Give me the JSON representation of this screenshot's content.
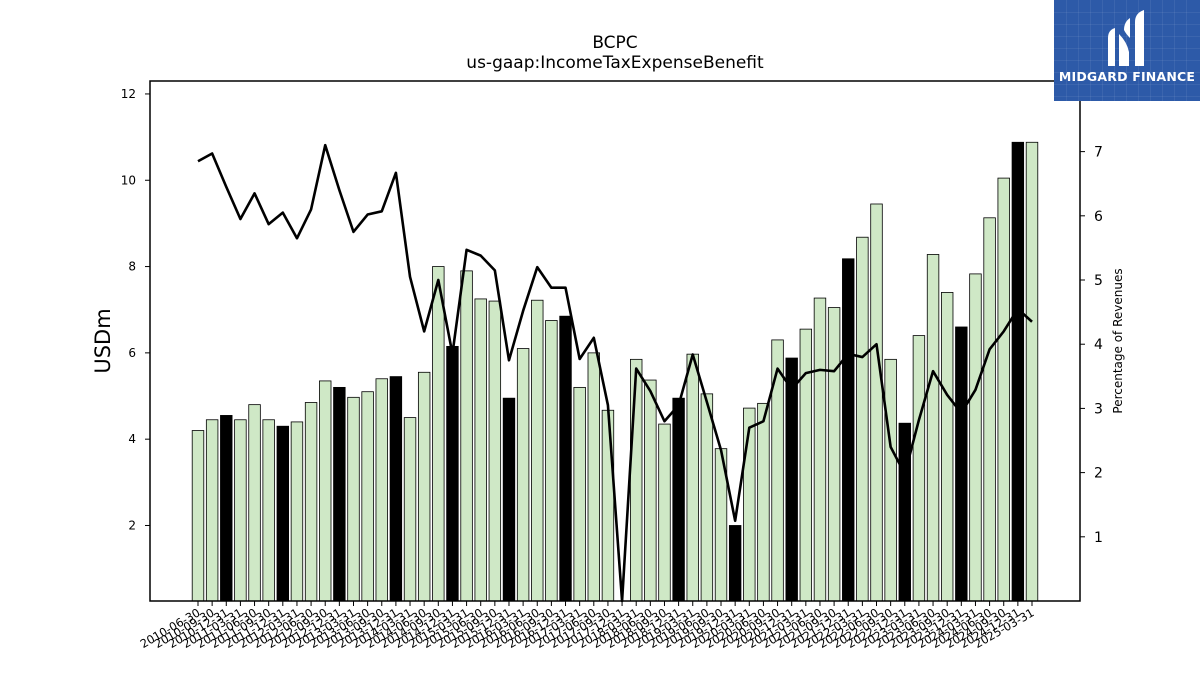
{
  "brand": {
    "name": "MIDGARD FINANCE",
    "logo_icon": "midgard-m-logo-icon",
    "background_color": "#2d5aa8"
  },
  "chart_data": {
    "type": "bar",
    "title": "BCPC",
    "subtitle": "us-gaap:IncomeTaxExpenseBenefit",
    "ylabel": "USDm",
    "y2label": "Percentage of Revenues",
    "ylim": [
      0.25,
      12.3
    ],
    "y2lim": [
      0,
      8.1
    ],
    "yticks": [
      2,
      4,
      6,
      8,
      10,
      12
    ],
    "y2ticks": [
      1,
      2,
      3,
      4,
      5,
      6,
      7
    ],
    "x_tick_labels": [
      "2010-06-30",
      "2010-09-30",
      "2010-12-31",
      "2011-03-31",
      "2011-06-30",
      "2011-09-30",
      "2011-12-31",
      "2012-03-31",
      "2012-06-30",
      "2012-09-30",
      "2012-12-31",
      "2013-03-31",
      "2013-06-30",
      "2013-09-30",
      "2013-12-31",
      "2014-03-31",
      "2014-06-30",
      "2014-09-30",
      "2014-12-31",
      "2015-03-31",
      "2015-06-30",
      "2015-09-30",
      "2015-12-31",
      "2016-03-31",
      "2016-06-30",
      "2016-09-30",
      "2016-12-31",
      "2017-03-31",
      "2017-06-30",
      "2017-09-30",
      "2017-12-31",
      "2018-03-31",
      "2018-06-30",
      "2018-09-30",
      "2018-12-31",
      "2019-03-31",
      "2019-06-30",
      "2019-09-30",
      "2019-12-31",
      "2020-03-31",
      "2020-06-30",
      "2020-09-30",
      "2020-12-31",
      "2021-03-31",
      "2021-06-30",
      "2021-09-30",
      "2021-12-31",
      "2022-03-31",
      "2022-06-30",
      "2022-09-30",
      "2022-12-31",
      "2023-03-31",
      "2023-06-30",
      "2023-09-30",
      "2023-12-31",
      "2024-03-31",
      "2024-06-30",
      "2024-09-30",
      "2024-12-31",
      "2025-03-31"
    ],
    "series": [
      {
        "kind": "bar",
        "values": [
          4.2,
          4.45,
          4.55,
          4.45,
          4.8,
          4.45,
          4.3,
          4.4,
          4.85,
          5.35,
          5.2,
          4.97,
          5.1,
          5.4,
          5.45,
          4.5,
          5.55,
          8.0,
          6.15,
          7.9,
          7.25,
          7.2,
          4.95,
          6.1,
          7.22,
          6.75,
          6.85,
          5.2,
          6.0,
          4.67,
          null,
          5.85,
          5.37,
          4.35,
          4.95,
          5.97,
          5.05,
          3.78,
          2.0,
          4.72,
          4.83,
          6.3,
          5.88,
          6.55,
          7.27,
          7.05,
          8.18,
          8.68,
          9.45,
          5.85,
          4.37,
          6.4,
          8.28,
          7.4,
          6.6,
          7.83,
          9.13,
          10.05,
          10.88,
          10.88
        ],
        "highlight": [
          false,
          false,
          true,
          false,
          false,
          false,
          true,
          false,
          false,
          false,
          true,
          false,
          false,
          false,
          true,
          false,
          false,
          false,
          true,
          false,
          false,
          false,
          true,
          false,
          false,
          false,
          true,
          false,
          false,
          false,
          false,
          false,
          false,
          false,
          true,
          false,
          false,
          false,
          true,
          false,
          false,
          false,
          true,
          false,
          false,
          false,
          true,
          false,
          false,
          false,
          true,
          false,
          false,
          false,
          true,
          false,
          false,
          false,
          true,
          false
        ],
        "color": "#cfe8c6",
        "highlight_color": "#000000"
      },
      {
        "kind": "line",
        "axis": "right",
        "values": [
          6.85,
          6.97,
          6.45,
          5.95,
          6.35,
          5.87,
          6.05,
          5.65,
          6.1,
          7.1,
          6.4,
          5.75,
          6.02,
          6.07,
          6.67,
          5.05,
          4.2,
          5.0,
          3.85,
          5.47,
          5.38,
          5.15,
          3.75,
          4.52,
          5.2,
          4.88,
          4.88,
          3.77,
          4.1,
          3.05,
          0.0,
          3.62,
          3.27,
          2.8,
          3.05,
          3.84,
          3.1,
          2.35,
          1.25,
          2.7,
          2.8,
          3.62,
          3.3,
          3.55,
          3.6,
          3.58,
          3.85,
          3.8,
          4.0,
          2.4,
          1.98,
          2.82,
          3.58,
          3.21,
          2.93,
          3.29,
          3.92,
          4.2,
          4.55,
          4.35
        ],
        "color": "#000000"
      }
    ],
    "grid": false,
    "legend": "none"
  }
}
